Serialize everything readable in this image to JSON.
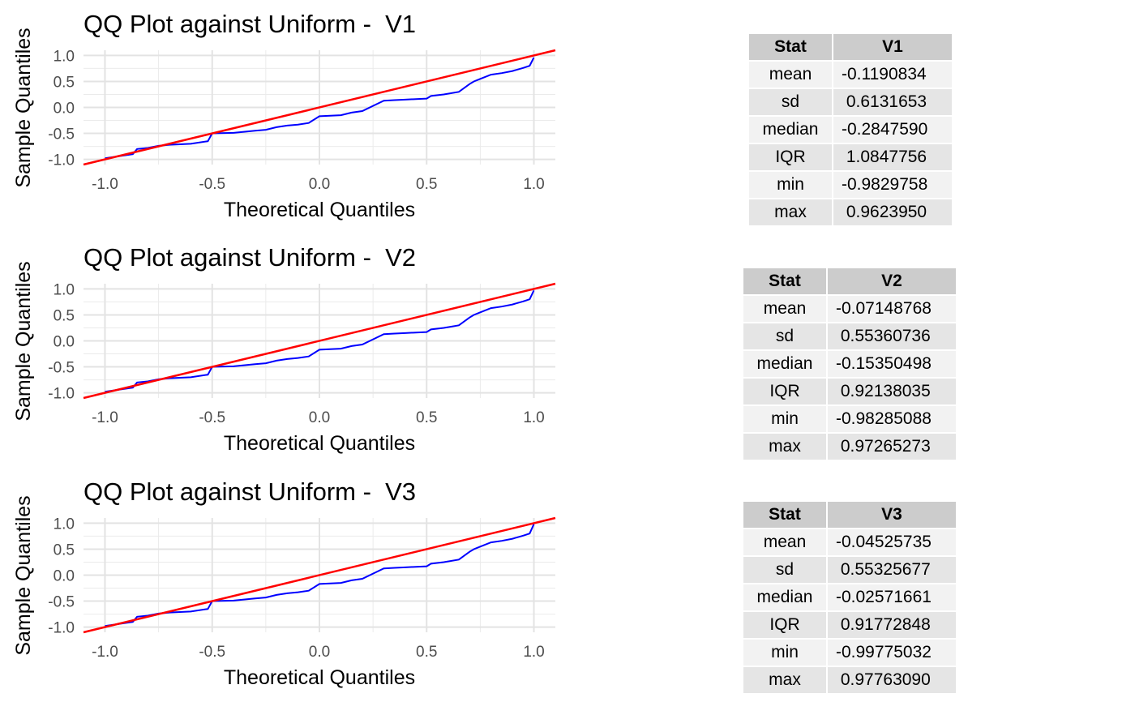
{
  "chart_data": [
    {
      "type": "line",
      "title": "QQ Plot against Uniform -  V1",
      "xlabel": "Theoretical Quantiles",
      "ylabel": "Sample Quantiles",
      "xlim": [
        -1.1,
        1.1
      ],
      "ylim": [
        -1.1,
        1.1
      ],
      "x_ticks": [
        "-1.0",
        "-0.5",
        "0.0",
        "0.5",
        "1.0"
      ],
      "y_ticks": [
        "-1.0",
        "-0.5",
        "0.0",
        "0.5",
        "1.0"
      ],
      "grid": true,
      "reference_line": {
        "color": "#ff0000",
        "slope": 1,
        "intercept": 0
      },
      "series": [
        {
          "color": "#0000ff",
          "x": [
            -1.0,
            -0.92,
            -0.87,
            -0.85,
            -0.8,
            -0.75,
            -0.7,
            -0.6,
            -0.52,
            -0.5,
            -0.4,
            -0.3,
            -0.25,
            -0.2,
            -0.15,
            -0.1,
            -0.05,
            0.0,
            0.1,
            0.15,
            0.2,
            0.3,
            0.35,
            0.4,
            0.45,
            0.5,
            0.52,
            0.58,
            0.65,
            0.7,
            0.72,
            0.75,
            0.8,
            0.85,
            0.9,
            0.95,
            0.98,
            1.0
          ],
          "y": [
            -0.98,
            -0.93,
            -0.9,
            -0.8,
            -0.78,
            -0.74,
            -0.72,
            -0.7,
            -0.65,
            -0.5,
            -0.49,
            -0.45,
            -0.43,
            -0.38,
            -0.35,
            -0.33,
            -0.3,
            -0.17,
            -0.15,
            -0.1,
            -0.07,
            0.13,
            0.14,
            0.15,
            0.16,
            0.17,
            0.22,
            0.25,
            0.3,
            0.45,
            0.5,
            0.55,
            0.63,
            0.66,
            0.7,
            0.76,
            0.8,
            0.96
          ]
        }
      ]
    },
    {
      "type": "line",
      "title": "QQ Plot against Uniform -  V2",
      "xlabel": "Theoretical Quantiles",
      "ylabel": "Sample Quantiles",
      "xlim": [
        -1.1,
        1.1
      ],
      "ylim": [
        -1.1,
        1.1
      ],
      "x_ticks": [
        "-1.0",
        "-0.5",
        "0.0",
        "0.5",
        "1.0"
      ],
      "y_ticks": [
        "-1.0",
        "-0.5",
        "0.0",
        "0.5",
        "1.0"
      ],
      "grid": true,
      "reference_line": {
        "color": "#ff0000",
        "slope": 1,
        "intercept": 0
      },
      "series": [
        {
          "color": "#0000ff",
          "x": [
            -1.0,
            -0.92,
            -0.87,
            -0.85,
            -0.8,
            -0.75,
            -0.7,
            -0.6,
            -0.52,
            -0.5,
            -0.4,
            -0.3,
            -0.25,
            -0.2,
            -0.15,
            -0.1,
            -0.05,
            0.0,
            0.1,
            0.15,
            0.2,
            0.3,
            0.35,
            0.4,
            0.45,
            0.5,
            0.52,
            0.58,
            0.65,
            0.7,
            0.72,
            0.75,
            0.8,
            0.85,
            0.9,
            0.95,
            0.98,
            1.0
          ],
          "y": [
            -0.98,
            -0.93,
            -0.9,
            -0.8,
            -0.78,
            -0.74,
            -0.72,
            -0.7,
            -0.65,
            -0.5,
            -0.49,
            -0.45,
            -0.43,
            -0.38,
            -0.35,
            -0.33,
            -0.3,
            -0.17,
            -0.15,
            -0.1,
            -0.07,
            0.13,
            0.14,
            0.15,
            0.16,
            0.17,
            0.22,
            0.25,
            0.3,
            0.45,
            0.5,
            0.55,
            0.63,
            0.66,
            0.7,
            0.76,
            0.8,
            0.97
          ]
        }
      ]
    },
    {
      "type": "line",
      "title": "QQ Plot against Uniform -  V3",
      "xlabel": "Theoretical Quantiles",
      "ylabel": "Sample Quantiles",
      "xlim": [
        -1.1,
        1.1
      ],
      "ylim": [
        -1.1,
        1.1
      ],
      "x_ticks": [
        "-1.0",
        "-0.5",
        "0.0",
        "0.5",
        "1.0"
      ],
      "y_ticks": [
        "-1.0",
        "-0.5",
        "0.0",
        "0.5",
        "1.0"
      ],
      "grid": true,
      "reference_line": {
        "color": "#ff0000",
        "slope": 1,
        "intercept": 0
      },
      "series": [
        {
          "color": "#0000ff",
          "x": [
            -1.0,
            -0.92,
            -0.87,
            -0.85,
            -0.8,
            -0.75,
            -0.7,
            -0.6,
            -0.52,
            -0.5,
            -0.4,
            -0.3,
            -0.25,
            -0.2,
            -0.15,
            -0.1,
            -0.05,
            0.0,
            0.1,
            0.15,
            0.2,
            0.3,
            0.35,
            0.4,
            0.45,
            0.5,
            0.52,
            0.58,
            0.65,
            0.7,
            0.72,
            0.75,
            0.8,
            0.85,
            0.9,
            0.95,
            0.98,
            1.0
          ],
          "y": [
            -0.98,
            -0.93,
            -0.9,
            -0.8,
            -0.78,
            -0.74,
            -0.72,
            -0.7,
            -0.65,
            -0.5,
            -0.49,
            -0.45,
            -0.43,
            -0.38,
            -0.35,
            -0.33,
            -0.3,
            -0.17,
            -0.15,
            -0.1,
            -0.07,
            0.13,
            0.14,
            0.15,
            0.16,
            0.17,
            0.22,
            0.25,
            0.3,
            0.45,
            0.5,
            0.55,
            0.63,
            0.66,
            0.7,
            0.76,
            0.8,
            0.98
          ]
        }
      ]
    }
  ],
  "tables": [
    {
      "header": [
        "Stat",
        "V1"
      ],
      "rows": [
        {
          "stat": "mean",
          "value": "-0.1190834"
        },
        {
          "stat": "sd",
          "value": " 0.6131653"
        },
        {
          "stat": "median",
          "value": "-0.2847590"
        },
        {
          "stat": "IQR",
          "value": " 1.0847756"
        },
        {
          "stat": "min",
          "value": "-0.9829758"
        },
        {
          "stat": "max",
          "value": " 0.9623950"
        }
      ]
    },
    {
      "header": [
        "Stat",
        "V2"
      ],
      "rows": [
        {
          "stat": "mean",
          "value": "-0.07148768"
        },
        {
          "stat": "sd",
          "value": " 0.55360736"
        },
        {
          "stat": "median",
          "value": "-0.15350498"
        },
        {
          "stat": "IQR",
          "value": " 0.92138035"
        },
        {
          "stat": "min",
          "value": "-0.98285088"
        },
        {
          "stat": "max",
          "value": " 0.97265273"
        }
      ]
    },
    {
      "header": [
        "Stat",
        "V3"
      ],
      "rows": [
        {
          "stat": "mean",
          "value": "-0.04525735"
        },
        {
          "stat": "sd",
          "value": " 0.55325677"
        },
        {
          "stat": "median",
          "value": "-0.02571661"
        },
        {
          "stat": "IQR",
          "value": " 0.91772848"
        },
        {
          "stat": "min",
          "value": "-0.99775032"
        },
        {
          "stat": "max",
          "value": " 0.97763090"
        }
      ]
    }
  ]
}
